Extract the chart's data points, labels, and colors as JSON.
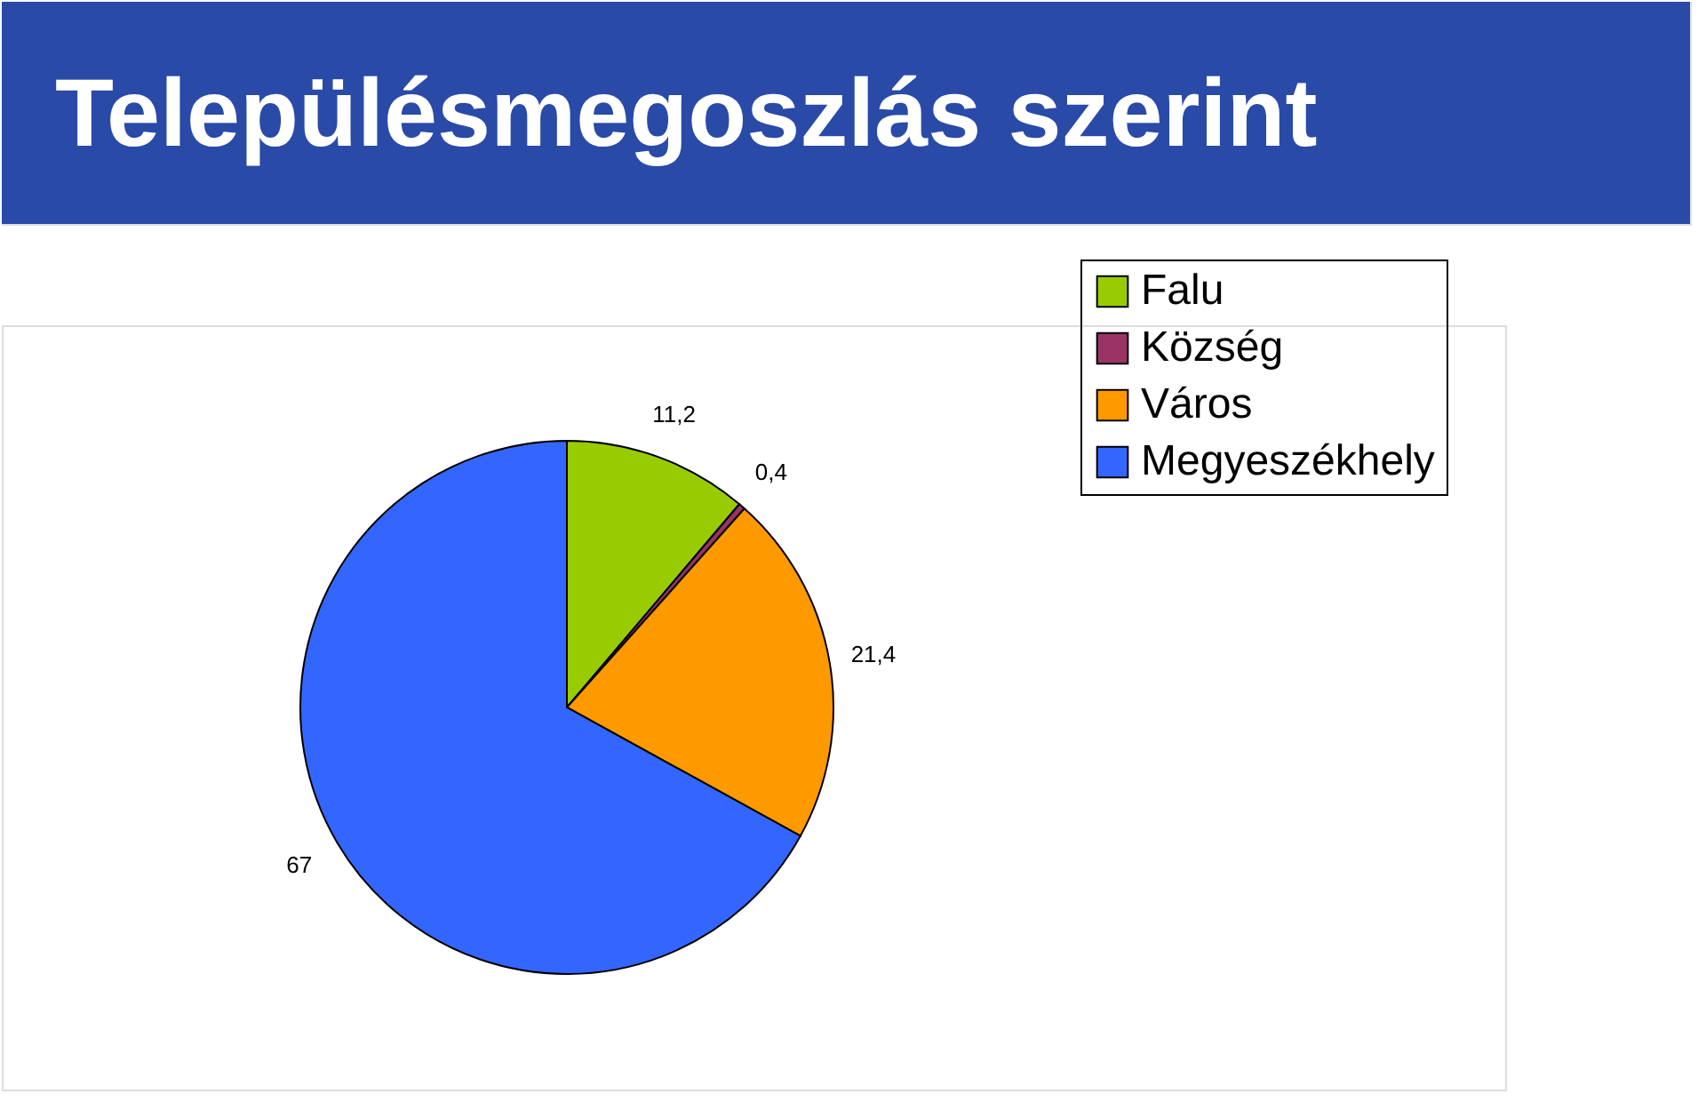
{
  "chart_data": {
    "type": "pie",
    "title": "Településmegoszlás szerint",
    "categories": [
      "Falu",
      "Község",
      "Város",
      "Megyeszékhely"
    ],
    "values": [
      11.2,
      0.4,
      21.4,
      67
    ],
    "value_labels": [
      "11,2",
      "0,4",
      "21,4",
      "67"
    ],
    "colors": [
      "#99cc00",
      "#993366",
      "#ff9900",
      "#3366ff"
    ],
    "legend": "right"
  }
}
